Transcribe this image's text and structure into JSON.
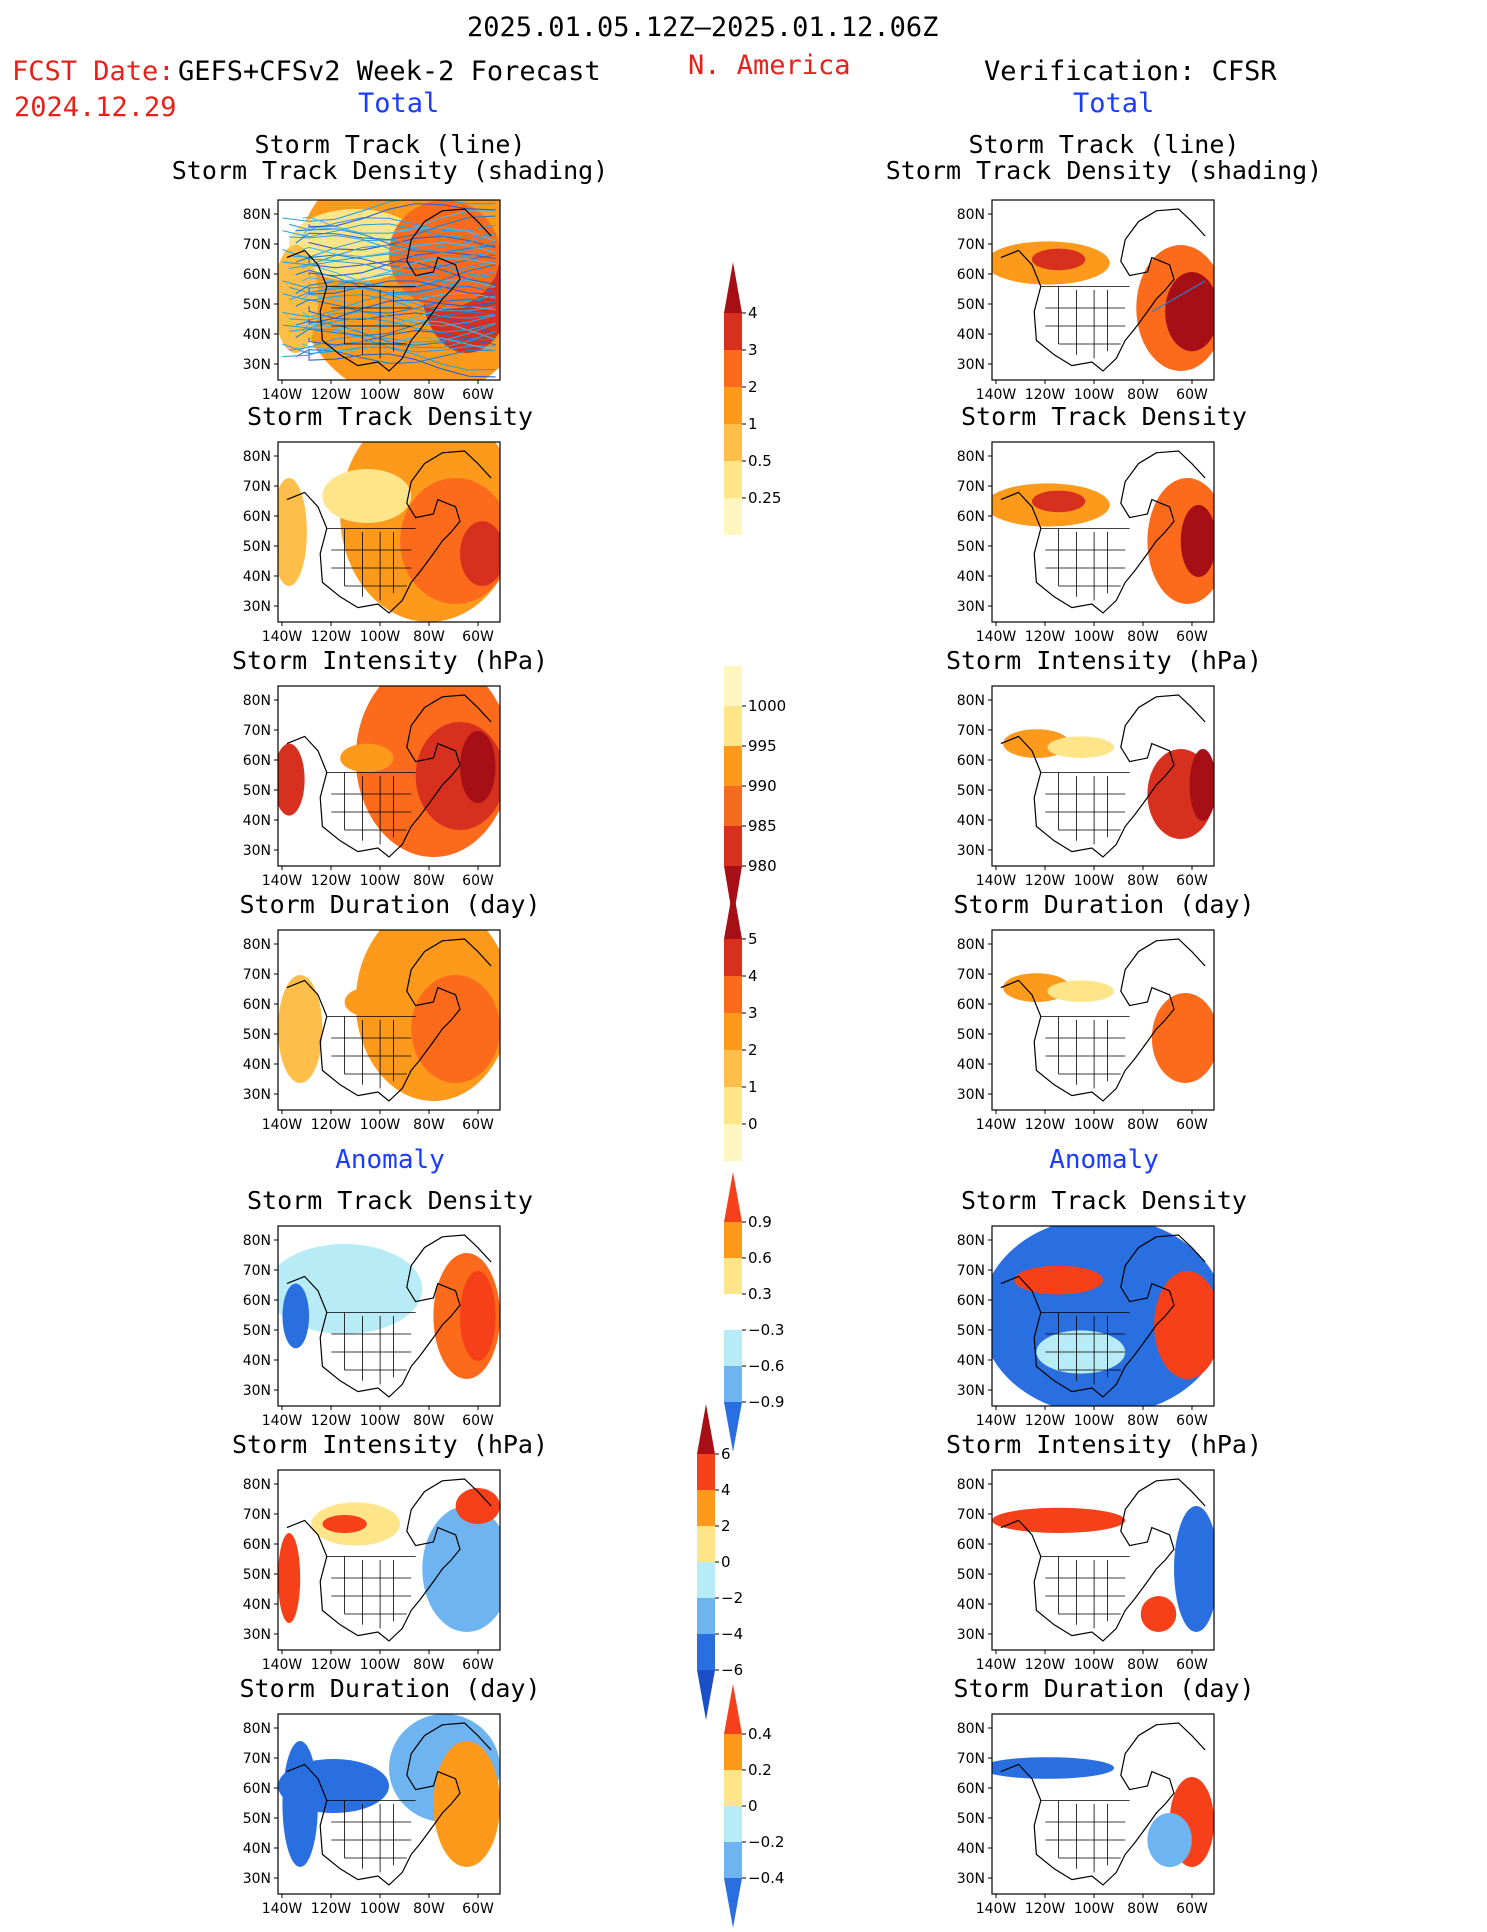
{
  "header": {
    "period": "2025.01.05.12Z–2025.01.12.06Z",
    "fcst_label": "FCST Date:",
    "fcst_date": "2024.12.29",
    "model": "GEFS+CFSv2 Week-2 Forecast",
    "region": "N. America",
    "verification": "Verification: CFSR"
  },
  "columns": {
    "left_total": "Total",
    "right_total": "Total",
    "left_anomaly": "Anomaly",
    "right_anomaly": "Anomaly"
  },
  "titles": {
    "track_line": "Storm Track (line)",
    "track_shading": "Storm Track Density (shading)",
    "density": "Storm Track Density",
    "intensity": "Storm Intensity (hPa)",
    "duration": "Storm Duration (day)"
  },
  "axes": {
    "lat_ticks": [
      "80N",
      "70N",
      "60N",
      "50N",
      "40N",
      "30N"
    ],
    "lon_ticks": [
      "140W",
      "120W",
      "100W",
      "80W",
      "60W"
    ]
  },
  "colorbars": {
    "density": {
      "labels": [
        "4",
        "3",
        "2",
        "1",
        "0.5",
        "0.25"
      ],
      "colors": [
        "#a50f15",
        "#d7301f",
        "#fc6a1c",
        "#fd9a1c",
        "#fdbe4a",
        "#fee58a",
        "#fff6c0"
      ]
    },
    "intensity": {
      "labels": [
        "1000",
        "995",
        "990",
        "985",
        "980"
      ],
      "colors": [
        "#fff6c0",
        "#fee58a",
        "#fd9a1c",
        "#f26b1f",
        "#d7301f",
        "#a50f15"
      ]
    },
    "duration": {
      "labels": [
        "5",
        "4",
        "3",
        "2",
        "1",
        "0"
      ],
      "colors": [
        "#a50f15",
        "#d7301f",
        "#fc6a1c",
        "#fd9a1c",
        "#fdbe4a",
        "#fee58a",
        "#fff6c0"
      ]
    },
    "anom_density": {
      "labels": [
        "0.9",
        "0.6",
        "0.3",
        "−0.3",
        "−0.6",
        "−0.9"
      ],
      "colors": [
        "#f5401a",
        "#fd9a1c",
        "#fee58a",
        "#ffffff",
        "#b7ecf7",
        "#6db4f0",
        "#2a6fe0"
      ]
    },
    "anom_intensity": {
      "labels": [
        "6",
        "4",
        "2",
        "0",
        "−2",
        "−4",
        "−6"
      ],
      "colors": [
        "#a50f15",
        "#f5401a",
        "#fd9a1c",
        "#fee58a",
        "#b7ecf7",
        "#6db4f0",
        "#2a6fe0",
        "#1a4fc8"
      ]
    },
    "anom_duration": {
      "labels": [
        "0.4",
        "0.2",
        "0",
        "−0.2",
        "−0.4"
      ],
      "colors": [
        "#f5401a",
        "#fd9a1c",
        "#fee58a",
        "#b7ecf7",
        "#6db4f0",
        "#2a6fe0"
      ]
    }
  }
}
